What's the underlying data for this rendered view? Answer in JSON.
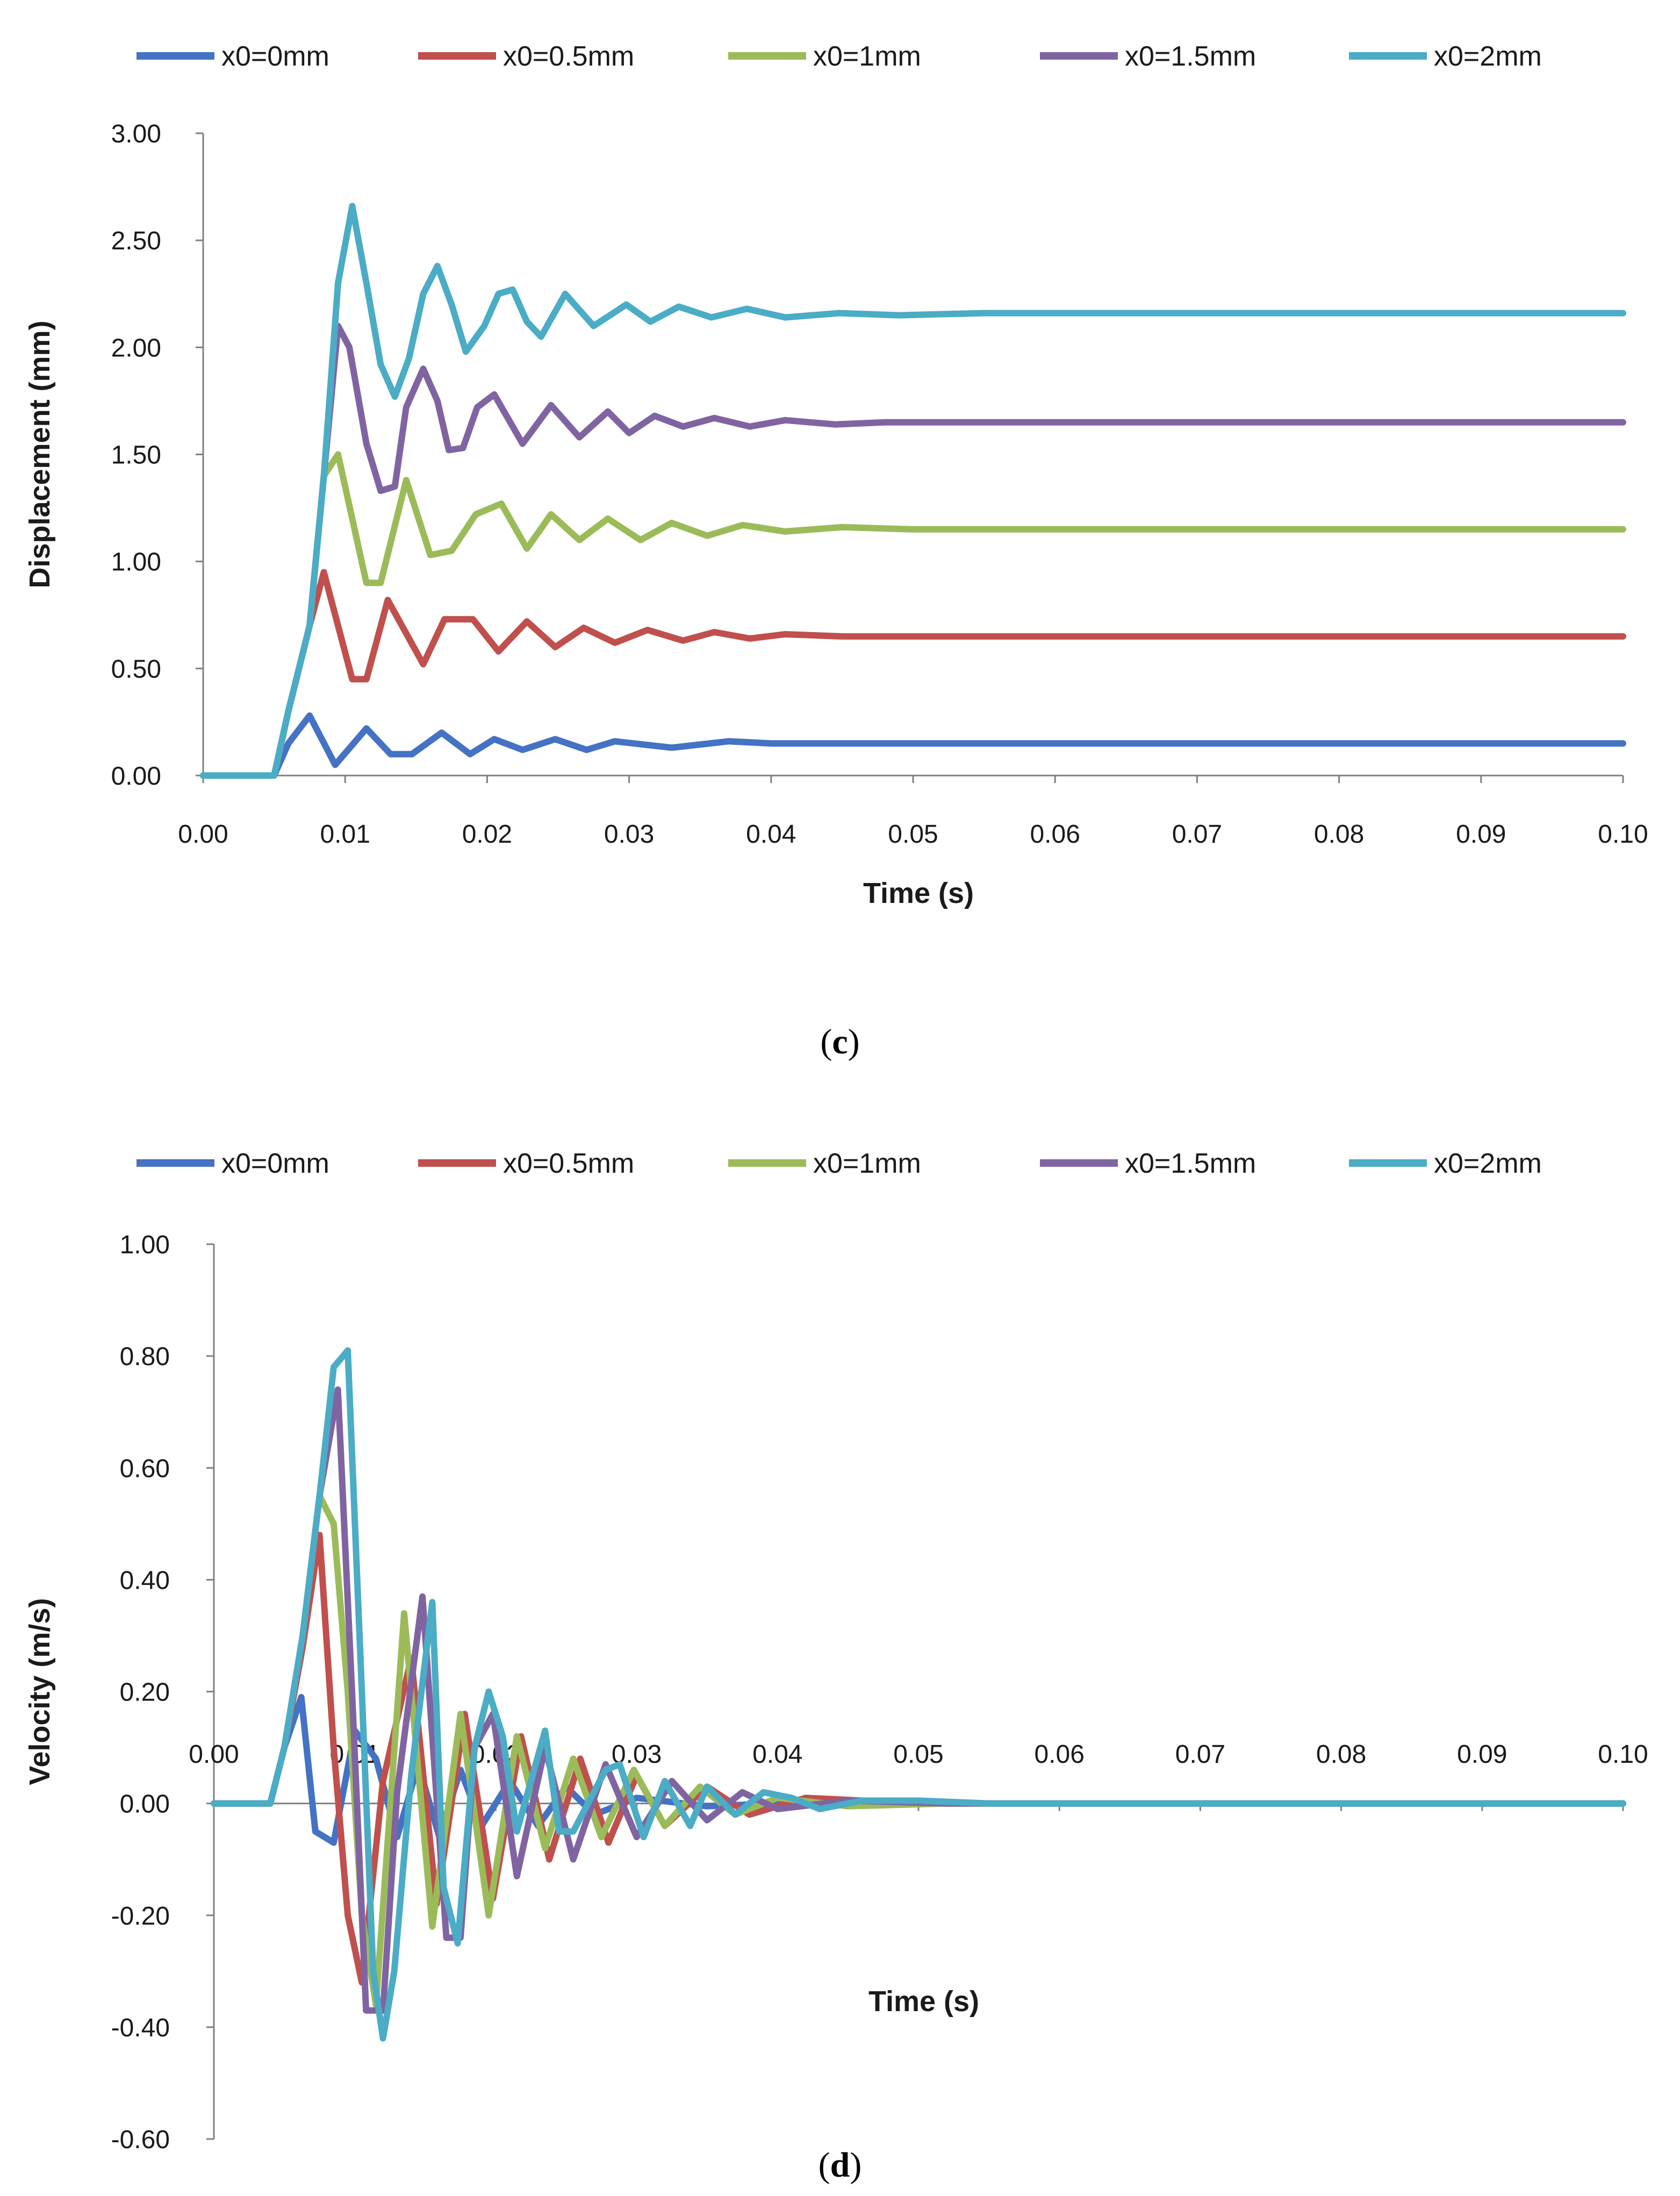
{
  "chart_data": [
    {
      "type": "line",
      "panel_label": "c",
      "xlabel": "Time (s)",
      "ylabel": "Displacement  (mm)",
      "xlim": [
        0,
        0.1
      ],
      "ylim": [
        0,
        3
      ],
      "xticks": [
        "0.00",
        "0.01",
        "0.02",
        "0.03",
        "0.04",
        "0.05",
        "0.06",
        "0.07",
        "0.08",
        "0.09",
        "0.10"
      ],
      "yticks": [
        "0.00",
        "0.50",
        "1.00",
        "1.50",
        "2.00",
        "2.50",
        "3.00"
      ],
      "legend_position": "top",
      "grid": false,
      "series": [
        {
          "name": "x0=0mm",
          "color": "#4472c4",
          "x": [
            0,
            0.005,
            0.006,
            0.0075,
            0.0093,
            0.0115,
            0.0132,
            0.0147,
            0.0168,
            0.0188,
            0.0205,
            0.0225,
            0.0248,
            0.027,
            0.029,
            0.033,
            0.037,
            0.04,
            0.05,
            0.1
          ],
          "y": [
            0,
            0,
            0.15,
            0.28,
            0.05,
            0.22,
            0.1,
            0.1,
            0.2,
            0.1,
            0.17,
            0.12,
            0.17,
            0.12,
            0.16,
            0.13,
            0.16,
            0.15,
            0.15,
            0.15
          ]
        },
        {
          "name": "x0=0.5mm",
          "color": "#c0504d",
          "x": [
            0,
            0.005,
            0.006,
            0.0075,
            0.0085,
            0.0105,
            0.0115,
            0.013,
            0.0155,
            0.017,
            0.019,
            0.0208,
            0.0228,
            0.0248,
            0.0268,
            0.029,
            0.0313,
            0.0338,
            0.036,
            0.0385,
            0.041,
            0.045,
            0.1
          ],
          "y": [
            0,
            0,
            0.3,
            0.7,
            0.95,
            0.45,
            0.45,
            0.82,
            0.52,
            0.73,
            0.73,
            0.58,
            0.72,
            0.6,
            0.69,
            0.62,
            0.68,
            0.63,
            0.67,
            0.64,
            0.66,
            0.65,
            0.65
          ]
        },
        {
          "name": "x0=1mm",
          "color": "#9bbb59",
          "x": [
            0,
            0.005,
            0.006,
            0.0075,
            0.0085,
            0.0095,
            0.0115,
            0.0125,
            0.0143,
            0.016,
            0.0175,
            0.0192,
            0.021,
            0.0228,
            0.0245,
            0.0265,
            0.0285,
            0.0308,
            0.033,
            0.0355,
            0.038,
            0.041,
            0.045,
            0.05,
            0.1
          ],
          "y": [
            0,
            0,
            0.3,
            0.7,
            1.4,
            1.5,
            0.9,
            0.9,
            1.38,
            1.03,
            1.05,
            1.22,
            1.27,
            1.06,
            1.22,
            1.1,
            1.2,
            1.1,
            1.18,
            1.12,
            1.17,
            1.14,
            1.16,
            1.15,
            1.15
          ]
        },
        {
          "name": "x0=1.5mm",
          "color": "#8064a2",
          "x": [
            0,
            0.005,
            0.006,
            0.0075,
            0.0085,
            0.0095,
            0.0103,
            0.0115,
            0.0125,
            0.0135,
            0.0143,
            0.0155,
            0.0165,
            0.0173,
            0.0183,
            0.0193,
            0.0205,
            0.0225,
            0.0245,
            0.0265,
            0.0285,
            0.03,
            0.0318,
            0.0338,
            0.036,
            0.0385,
            0.041,
            0.0445,
            0.048,
            0.1
          ],
          "y": [
            0,
            0,
            0.3,
            0.7,
            1.4,
            2.1,
            2.0,
            1.55,
            1.33,
            1.35,
            1.72,
            1.9,
            1.75,
            1.52,
            1.53,
            1.72,
            1.78,
            1.55,
            1.73,
            1.58,
            1.7,
            1.6,
            1.68,
            1.63,
            1.67,
            1.63,
            1.66,
            1.64,
            1.65,
            1.65
          ]
        },
        {
          "name": "x0=2mm",
          "color": "#4bacc6",
          "x": [
            0,
            0.005,
            0.006,
            0.0075,
            0.0085,
            0.0095,
            0.0105,
            0.0115,
            0.0125,
            0.0135,
            0.0145,
            0.0155,
            0.0165,
            0.0175,
            0.0185,
            0.0198,
            0.0208,
            0.0218,
            0.0228,
            0.0238,
            0.0255,
            0.0275,
            0.0298,
            0.0315,
            0.0335,
            0.0358,
            0.0383,
            0.041,
            0.0448,
            0.049,
            0.055,
            0.1
          ],
          "y": [
            0,
            0,
            0.3,
            0.7,
            1.4,
            2.3,
            2.66,
            2.3,
            1.92,
            1.77,
            1.95,
            2.25,
            2.38,
            2.2,
            1.98,
            2.1,
            2.25,
            2.27,
            2.12,
            2.05,
            2.25,
            2.1,
            2.2,
            2.12,
            2.19,
            2.14,
            2.18,
            2.14,
            2.16,
            2.15,
            2.16,
            2.16
          ]
        }
      ]
    },
    {
      "type": "line",
      "panel_label": "d",
      "xlabel": "Time (s)",
      "ylabel": "Velocity (m/s)",
      "xlim": [
        0,
        0.1
      ],
      "ylim": [
        -0.6,
        1
      ],
      "xticks": [
        "0.00",
        "0.01",
        "0.02",
        "0.03",
        "0.04",
        "0.05",
        "0.06",
        "0.07",
        "0.08",
        "0.09",
        "0.10"
      ],
      "yticks": [
        "-0.60",
        "-0.40",
        "-0.20",
        "0.00",
        "0.20",
        "0.40",
        "0.60",
        "0.80",
        "1.00"
      ],
      "legend_position": "top",
      "grid": false,
      "series": [
        {
          "name": "x0=0mm",
          "color": "#4472c4",
          "x": [
            0,
            0.004,
            0.005,
            0.0062,
            0.0072,
            0.0085,
            0.01,
            0.0115,
            0.013,
            0.0145,
            0.016,
            0.0175,
            0.019,
            0.021,
            0.023,
            0.025,
            0.027,
            0.03,
            0.035,
            0.04,
            0.1
          ],
          "y": [
            0,
            0,
            0.1,
            0.19,
            -0.05,
            -0.07,
            0.13,
            0.08,
            -0.06,
            0.07,
            -0.06,
            0.06,
            -0.04,
            0.04,
            -0.04,
            0.03,
            -0.02,
            0.01,
            -0.005,
            0,
            0
          ]
        },
        {
          "name": "x0=0.5mm",
          "color": "#c0504d",
          "x": [
            0,
            0.004,
            0.005,
            0.0063,
            0.0075,
            0.0085,
            0.0095,
            0.0105,
            0.012,
            0.014,
            0.0158,
            0.0178,
            0.0198,
            0.0218,
            0.0238,
            0.026,
            0.028,
            0.03,
            0.032,
            0.035,
            0.038,
            0.042,
            0.05,
            0.1
          ],
          "y": [
            0,
            0,
            0.1,
            0.28,
            0.48,
            0.1,
            -0.2,
            -0.32,
            0.04,
            0.26,
            -0.18,
            0.16,
            -0.17,
            0.12,
            -0.1,
            0.08,
            -0.07,
            0.05,
            -0.04,
            0.03,
            -0.02,
            0.01,
            0,
            0
          ]
        },
        {
          "name": "x0=1mm",
          "color": "#9bbb59",
          "x": [
            0,
            0.004,
            0.005,
            0.0063,
            0.0075,
            0.0085,
            0.0095,
            0.0105,
            0.0115,
            0.0135,
            0.0155,
            0.0175,
            0.0195,
            0.0215,
            0.0235,
            0.0255,
            0.0275,
            0.0298,
            0.032,
            0.0345,
            0.037,
            0.04,
            0.045,
            0.052,
            0.1
          ],
          "y": [
            0,
            0,
            0.1,
            0.3,
            0.55,
            0.5,
            0.2,
            -0.2,
            -0.36,
            0.34,
            -0.22,
            0.16,
            -0.2,
            0.12,
            -0.08,
            0.08,
            -0.06,
            0.06,
            -0.04,
            0.03,
            -0.02,
            0.01,
            -0.005,
            0,
            0
          ]
        },
        {
          "name": "x0=1.5mm",
          "color": "#8064a2",
          "x": [
            0,
            0.004,
            0.005,
            0.0063,
            0.0075,
            0.0088,
            0.0098,
            0.0108,
            0.012,
            0.013,
            0.0148,
            0.0165,
            0.0175,
            0.0185,
            0.0198,
            0.0215,
            0.0235,
            0.0255,
            0.0278,
            0.03,
            0.0325,
            0.035,
            0.0375,
            0.04,
            0.045,
            0.052,
            0.1
          ],
          "y": [
            0,
            0,
            0.1,
            0.3,
            0.55,
            0.74,
            0.2,
            -0.37,
            -0.37,
            0.02,
            0.37,
            -0.24,
            -0.24,
            0.1,
            0.16,
            -0.13,
            0.1,
            -0.1,
            0.07,
            -0.06,
            0.04,
            -0.03,
            0.02,
            -0.01,
            0.005,
            0,
            0
          ]
        },
        {
          "name": "x0=2mm",
          "color": "#4bacc6",
          "x": [
            0,
            0.004,
            0.005,
            0.0063,
            0.0075,
            0.0085,
            0.0095,
            0.0105,
            0.0113,
            0.012,
            0.0128,
            0.014,
            0.0155,
            0.0163,
            0.0173,
            0.0185,
            0.0195,
            0.0205,
            0.0215,
            0.0235,
            0.0245,
            0.0255,
            0.0278,
            0.0288,
            0.0305,
            0.032,
            0.0338,
            0.035,
            0.037,
            0.039,
            0.041,
            0.043,
            0.046,
            0.05,
            0.055,
            0.1
          ],
          "y": [
            0,
            0,
            0.1,
            0.3,
            0.55,
            0.78,
            0.81,
            0.2,
            -0.3,
            -0.42,
            -0.3,
            0.05,
            0.36,
            -0.15,
            -0.25,
            0.1,
            0.2,
            0.12,
            -0.05,
            0.13,
            -0.05,
            -0.05,
            0.06,
            0.07,
            -0.06,
            0.04,
            -0.04,
            0.03,
            -0.02,
            0.02,
            0.01,
            -0.01,
            0.005,
            0.005,
            0,
            0
          ]
        }
      ]
    }
  ]
}
